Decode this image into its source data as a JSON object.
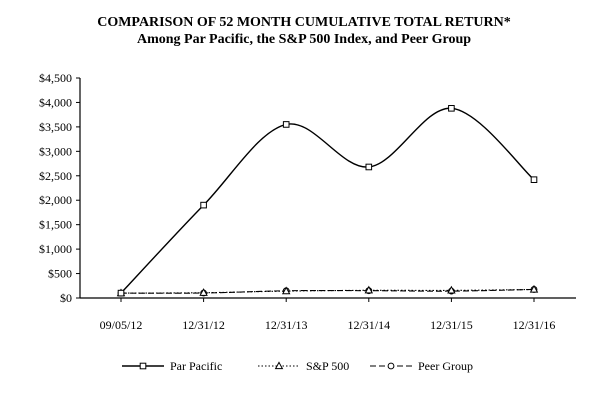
{
  "chart_data": {
    "type": "line",
    "title": "COMPARISON OF 52 MONTH CUMULATIVE TOTAL RETURN*",
    "subtitle": "Among Par Pacific, the S&P 500 Index, and Peer Group",
    "categories": [
      "09/05/12",
      "12/31/12",
      "12/31/13",
      "12/31/14",
      "12/31/15",
      "12/31/16"
    ],
    "y_ticks": [
      "$0",
      "$500",
      "$1,000",
      "$1,500",
      "$2,000",
      "$2,500",
      "$3,000",
      "$3,500",
      "$4,000",
      "$4,500"
    ],
    "ylim": [
      0,
      4500
    ],
    "y_tick_step": 500,
    "grid": false,
    "legend_position": "bottom",
    "series": [
      {
        "name": "Par Pacific",
        "values": [
          100,
          1900,
          3550,
          2680,
          3880,
          2420
        ],
        "line_style": "solid",
        "marker": "square",
        "color": "#000000"
      },
      {
        "name": "S&P 500",
        "values": [
          100,
          108,
          141,
          157,
          156,
          174
        ],
        "line_style": "dotted",
        "marker": "triangle",
        "color": "#000000"
      },
      {
        "name": "Peer Group",
        "values": [
          100,
          102,
          148,
          150,
          141,
          175
        ],
        "line_style": "dashed",
        "marker": "circle",
        "color": "#000000"
      }
    ]
  }
}
